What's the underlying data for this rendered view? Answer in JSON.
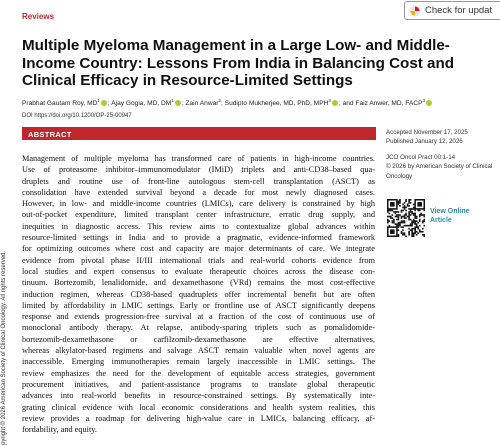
{
  "header": {
    "section": "Reviews",
    "badge": "Check for updat"
  },
  "title": "Multiple Myeloma Management in a Large Low- and Middle-Income Country: Lessons From India in Balancing Cost and Clinical Efficacy in Resource-Limited Settings",
  "authors": [
    {
      "name": "Prabhat Gautam Roy, MD",
      "affil": "1",
      "orcid": true
    },
    {
      "name": "Ajay Gogia, MD, DM",
      "affil": "1",
      "orcid": true
    },
    {
      "name": "Zain Anwar",
      "affil": "2",
      "orcid": false
    },
    {
      "name": "Sudipto Mukherjee, MD, PhD, MPH",
      "affil": "3",
      "orcid": true
    },
    {
      "name": "and Faiz Anwer, MD, FACP",
      "affil": "3",
      "orcid": true
    }
  ],
  "doi": "DOI https://doi.org/10.1200/OP-25-00947",
  "abstract": {
    "heading": "ABSTRACT",
    "lines": [
      "Management of multiple myeloma has transformed care of patients in high-income countries.",
      "Use of proteasome inhibitor–immunomodulator (IMiD) triplets and anti-CD38–based qua-",
      "druplets and routine use of front-line autologous stem-cell transplantation (ASCT) as",
      "consolidation have extended survival beyond a decade for most newly diagnosed cases.",
      "However, in low- and middle-income countries (LMICs), care delivery is constrained by high",
      "out-of-pocket expenditure, limited transplant center infrastructure, erratic drug supply, and",
      "inequities in diagnostic access. This review aims to contextualize global advances within",
      "resource-limited settings in India and to provide a pragmatic, evidence-informed framework",
      "for optimizing outcomes where cost and capacity are major determinants of care. We integrate",
      "evidence from pivotal phase II/III international trials and real-world cohorts evidence from",
      "local studies and expert consensus to evaluate therapeutic choices across the disease con-",
      "tinuum. Bortezomib, lenalidomide, and dexamethasone (VRd) remains the most cost-effective",
      "induction regimen, whereas CD38-based quadruplets offer incremental benefit but are often",
      "limited by affordability in LMIC settings. Early or frontline use of ASCT significantly deepens",
      "response and extends progression-free survival at a fraction of the cost of continuous use of",
      "monoclonal antibody therapy. At relapse, antibody-sparing triplets such as pomalidomide-",
      "bortezomib-dexamethasone or carfilzomib-dexamethasone are effective alternatives,",
      "whereas alkylator-based regimens and salvage ASCT remain valuable when novel agents are",
      "inaccessible. Emerging immunotherapies remain largely inaccessible in LMIC settings. The",
      "review emphasizes the need for the development of equitable access strategies, government",
      "procurement initiatives, and patient-assistance programs to translate global therapeutic",
      "advances into real-world benefits in resource-constrained settings. By systematically inte-",
      "grating clinical evidence with local economic considerations and health system realities, this",
      "review provides a roadmap for delivering high-value care in LMICs, balancing efficacy, af-",
      "fordability, and equity."
    ]
  },
  "meta": {
    "accepted": "Accepted November 17, 2025",
    "published": "Published January 12, 2026",
    "journal": "JCO Oncol Pract 00:1-14",
    "copyright": "© 2026 by American Society of Clinical Oncology"
  },
  "view_online": "View Online Article",
  "side_copyright": "pyright © 2026 American Society of Clinical Oncology. All rights reserved."
}
